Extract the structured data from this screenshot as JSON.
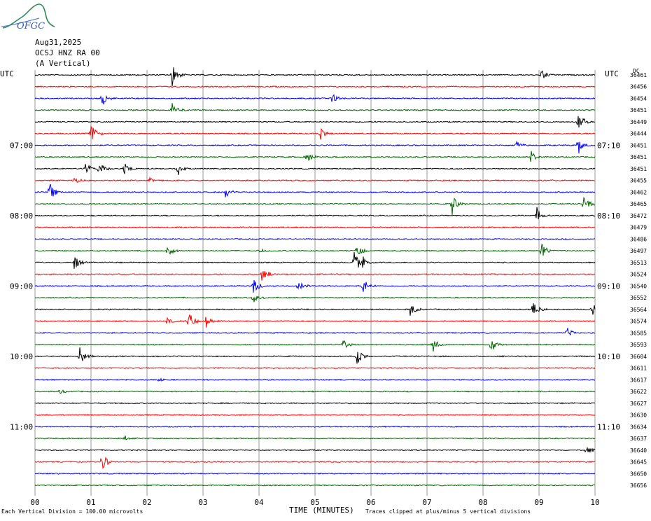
{
  "logo": {
    "text": "OFGC"
  },
  "header": {
    "date": "Aug31,2025",
    "station": "OCSJ HNZ RA 00",
    "component": "(A Vertical)"
  },
  "left_axis_label": "UTC",
  "right_axis_label": "UTC",
  "dc_label": "DC",
  "colors": {
    "black": "#000000",
    "red": "#ff0000",
    "blue": "#0000ff",
    "green": "#006600",
    "grid": "#9a9a9a"
  },
  "footer": {
    "left_note": "Each Vertical Division =  100.00 microvolts",
    "xlabel": "TIME (MINUTES)",
    "right_note": "Traces clipped at plus/minus 5 vertical divisions"
  },
  "chart_data": {
    "type": "line",
    "title": "",
    "xlabel": "TIME (MINUTES)",
    "ylabel": "UTC",
    "x_ticks": [
      "00",
      "01",
      "02",
      "03",
      "04",
      "05",
      "06",
      "07",
      "08",
      "09",
      "10"
    ],
    "xlim": [
      0,
      10
    ],
    "trace_count": 36,
    "trace_color_cycle": [
      "black",
      "red",
      "blue",
      "green"
    ],
    "left_time_labels": [
      {
        "trace": 6,
        "label": "07:00"
      },
      {
        "trace": 12,
        "label": "08:00"
      },
      {
        "trace": 18,
        "label": "09:00"
      },
      {
        "trace": 24,
        "label": "10:00"
      },
      {
        "trace": 30,
        "label": "11:00"
      }
    ],
    "right_time_labels": [
      {
        "trace": 6,
        "label": "07:10"
      },
      {
        "trace": 12,
        "label": "08:10"
      },
      {
        "trace": 18,
        "label": "09:10"
      },
      {
        "trace": 24,
        "label": "10:10"
      },
      {
        "trace": 30,
        "label": "11:10"
      }
    ],
    "dc_offsets": [
      "36461",
      "36456",
      "36454",
      "36451",
      "36449",
      "36444",
      "36451",
      "36451",
      "36451",
      "36455",
      "36462",
      "36465",
      "36472",
      "36479",
      "36486",
      "36497",
      "36513",
      "36524",
      "36540",
      "36552",
      "36564",
      "36574",
      "36585",
      "36593",
      "36604",
      "36611",
      "36617",
      "36622",
      "36627",
      "36630",
      "36634",
      "36637",
      "36640",
      "36645",
      "36650",
      "36656"
    ],
    "events": [
      [
        [
          2.45,
          1.0
        ],
        [
          9.05,
          0.6
        ]
      ],
      [],
      [
        [
          1.2,
          0.6
        ],
        [
          5.3,
          0.5
        ]
      ],
      [
        [
          2.45,
          0.6
        ]
      ],
      [
        [
          9.7,
          1.0
        ]
      ],
      [
        [
          1.0,
          1.0
        ],
        [
          5.1,
          0.6
        ]
      ],
      [
        [
          8.6,
          0.4
        ],
        [
          9.7,
          0.8
        ]
      ],
      [
        [
          4.85,
          0.6
        ],
        [
          8.85,
          0.6
        ]
      ],
      [
        [
          0.9,
          0.5
        ],
        [
          1.15,
          0.7
        ],
        [
          1.6,
          0.6
        ],
        [
          2.55,
          0.6
        ]
      ],
      [
        [
          0.7,
          0.3
        ],
        [
          2.05,
          0.2
        ]
      ],
      [
        [
          0.25,
          0.9
        ],
        [
          3.4,
          0.6
        ]
      ],
      [
        [
          7.45,
          0.8
        ],
        [
          9.8,
          0.8
        ]
      ],
      [
        [
          8.95,
          0.7
        ]
      ],
      [],
      [],
      [
        [
          2.35,
          0.8
        ],
        [
          4.0,
          0.2
        ],
        [
          9.05,
          0.8
        ],
        [
          5.75,
          0.6
        ]
      ],
      [
        [
          0.7,
          0.8
        ],
        [
          5.7,
          1.0
        ],
        [
          5.85,
          0.6
        ]
      ],
      [
        [
          4.05,
          0.8
        ]
      ],
      [
        [
          3.9,
          0.7
        ],
        [
          4.7,
          0.5
        ],
        [
          5.85,
          0.7
        ]
      ],
      [
        [
          3.9,
          0.5
        ]
      ],
      [
        [
          6.7,
          0.6
        ],
        [
          8.9,
          0.8
        ],
        [
          9.95,
          1.0
        ]
      ],
      [
        [
          2.35,
          0.3
        ],
        [
          2.75,
          0.8
        ],
        [
          3.05,
          0.6
        ]
      ],
      [
        [
          9.5,
          0.5
        ]
      ],
      [
        [
          5.5,
          0.5
        ],
        [
          7.1,
          0.8
        ],
        [
          8.15,
          0.7
        ]
      ],
      [
        [
          0.8,
          0.9
        ],
        [
          5.75,
          0.9
        ]
      ],
      [],
      [
        [
          2.2,
          0.2
        ]
      ],
      [
        [
          0.45,
          0.2
        ]
      ],
      [],
      [],
      [],
      [
        [
          1.6,
          0.2
        ]
      ],
      [
        [
          9.85,
          0.4
        ]
      ],
      [
        [
          1.2,
          0.8
        ]
      ],
      [],
      []
    ]
  }
}
